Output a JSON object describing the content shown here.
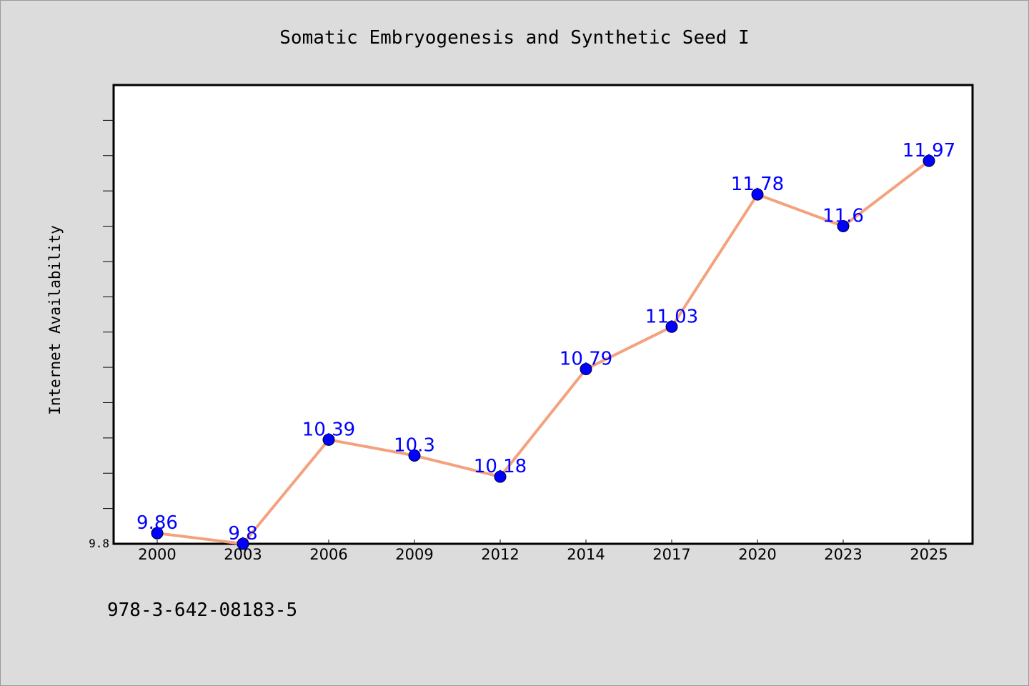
{
  "colors": {
    "background": "#dcdcdc",
    "plot_background": "#ffffff",
    "line": "#f4a27e",
    "marker": "#0000ff",
    "data_label": "#0000ff"
  },
  "footer_text": "978-3-642-08183-5",
  "chart_data": {
    "type": "line",
    "title": "Somatic Embryogenesis and Synthetic Seed I",
    "xlabel": "",
    "ylabel": "Internet Availability",
    "categories": [
      "2000",
      "2003",
      "2006",
      "2009",
      "2012",
      "2014",
      "2017",
      "2020",
      "2023",
      "2025"
    ],
    "series": [
      {
        "values": [
          9.86,
          9.8,
          10.39,
          10.3,
          10.18,
          10.79,
          11.03,
          11.78,
          11.6,
          11.97
        ]
      }
    ],
    "data_labels": [
      "9.86",
      "9.8",
      "10.39",
      "10.3",
      "10.18",
      "10.79",
      "11.03",
      "11.78",
      "11.6",
      "11.97"
    ],
    "ylim": [
      9.8,
      12.4
    ],
    "yticks_labeled": [
      "9.8"
    ],
    "minor_tick_step": 0.2,
    "grid": false,
    "legend": "none"
  }
}
